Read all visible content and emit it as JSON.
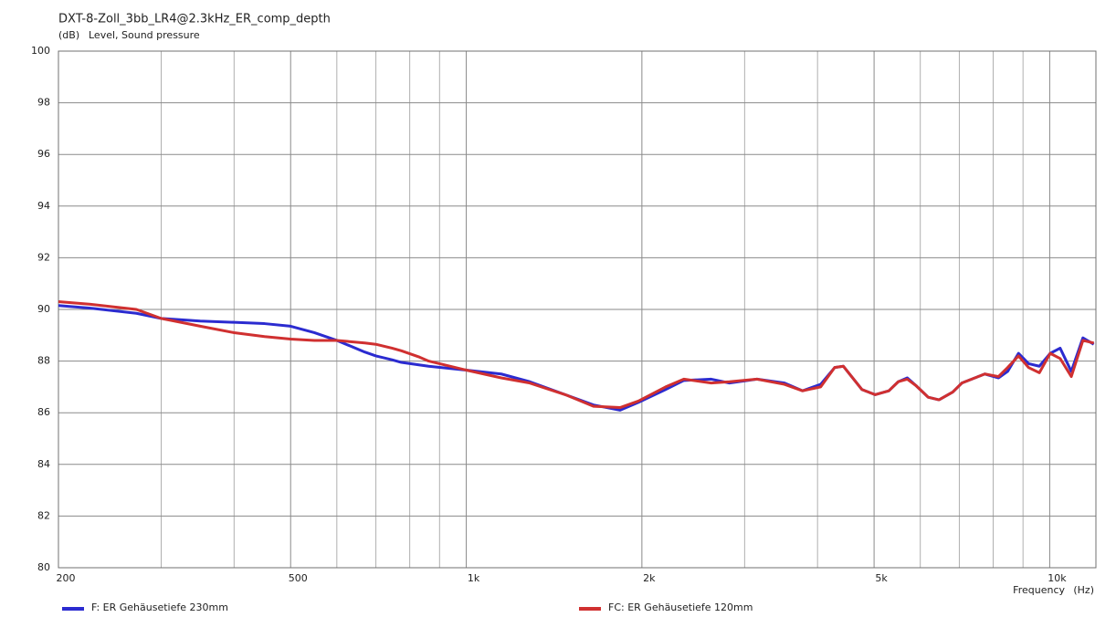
{
  "chart_data": {
    "type": "line",
    "title": "DXT-8-Zoll_3bb_LR4@2.3kHz_ER_comp_depth",
    "y_unit": "(dB)",
    "y_label": "Level, Sound pressure",
    "x_label": "Frequency",
    "x_unit": "(Hz)",
    "x_log": true,
    "grid": true,
    "xlim": [
      200,
      12000
    ],
    "ylim": [
      80,
      100
    ],
    "xticks": [
      200,
      500,
      {
        "value": 1000,
        "label": "1k"
      },
      {
        "value": 2000,
        "label": "2k"
      },
      {
        "value": 5000,
        "label": "5k"
      },
      {
        "value": 10000,
        "label": "10k"
      }
    ],
    "x_minor_ticks": [
      300,
      400,
      600,
      700,
      800,
      900,
      3000,
      4000,
      6000,
      7000,
      8000,
      9000
    ],
    "yticks": [
      80,
      82,
      84,
      86,
      88,
      90,
      92,
      94,
      96,
      98,
      100
    ],
    "x": [
      200,
      227,
      272,
      300,
      350,
      400,
      451,
      500,
      549,
      600,
      670,
      700,
      746,
      774,
      832,
      862,
      1000,
      1148,
      1285,
      1478,
      1652,
      1835,
      1972,
      2196,
      2360,
      2630,
      2825,
      3150,
      3510,
      3770,
      4050,
      4280,
      4430,
      4765,
      5020,
      5300,
      5500,
      5700,
      5900,
      6190,
      6460,
      6820,
      7070,
      7740,
      8170,
      8470,
      8840,
      9200,
      9600,
      10020,
      10420,
      10890,
      11400,
      11900
    ],
    "series": [
      {
        "name": "F: ER Gehäusetiefe 230mm",
        "color": "#2b2bd0",
        "values": [
          90.15,
          90.05,
          89.85,
          89.65,
          89.55,
          89.5,
          89.45,
          89.35,
          89.1,
          88.8,
          88.35,
          88.2,
          88.05,
          87.95,
          87.85,
          87.8,
          87.65,
          87.5,
          87.2,
          86.7,
          86.3,
          86.1,
          86.4,
          86.9,
          87.25,
          87.3,
          87.15,
          87.3,
          87.15,
          86.85,
          87.1,
          87.75,
          87.8,
          86.9,
          86.7,
          86.85,
          87.2,
          87.35,
          87.05,
          86.6,
          86.5,
          86.8,
          87.15,
          87.5,
          87.35,
          87.6,
          88.3,
          87.9,
          87.8,
          88.3,
          88.5,
          87.6,
          88.9,
          88.65
        ]
      },
      {
        "name": "FC: ER Gehäusetiefe 120mm",
        "color": "#d03030",
        "values": [
          90.3,
          90.2,
          90.0,
          89.65,
          89.35,
          89.1,
          88.95,
          88.85,
          88.8,
          88.8,
          88.7,
          88.65,
          88.5,
          88.4,
          88.15,
          88.0,
          87.65,
          87.35,
          87.15,
          86.7,
          86.25,
          86.2,
          86.45,
          87.0,
          87.3,
          87.15,
          87.2,
          87.3,
          87.1,
          86.85,
          87.0,
          87.75,
          87.8,
          86.9,
          86.7,
          86.85,
          87.2,
          87.3,
          87.05,
          86.6,
          86.5,
          86.8,
          87.15,
          87.5,
          87.4,
          87.75,
          88.2,
          87.75,
          87.55,
          88.3,
          88.1,
          87.4,
          88.8,
          88.7
        ]
      }
    ]
  }
}
